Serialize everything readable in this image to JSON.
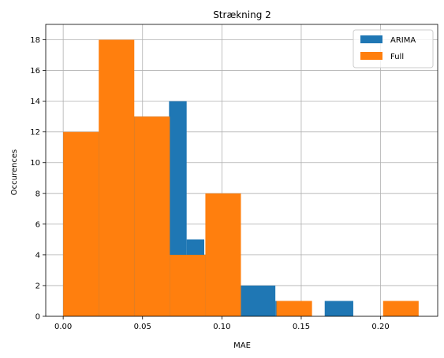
{
  "chart_data": {
    "type": "bar",
    "subtype": "histogram",
    "title": "Strækning 2",
    "xlabel": "MAE",
    "ylabel": "Occurences",
    "xlim": [
      -0.011,
      0.236
    ],
    "ylim": [
      0,
      19
    ],
    "x_ticks": [
      0.0,
      0.05,
      0.1,
      0.15,
      0.2
    ],
    "x_tick_labels": [
      "0.00",
      "0.05",
      "0.10",
      "0.15",
      "0.20"
    ],
    "y_ticks": [
      0,
      2,
      4,
      6,
      8,
      10,
      12,
      14,
      16,
      18
    ],
    "y_tick_labels": [
      "0",
      "2",
      "4",
      "6",
      "8",
      "10",
      "12",
      "14",
      "16",
      "18"
    ],
    "grid": true,
    "legend_position": "top-right",
    "series": [
      {
        "name": "ARIMA",
        "color": "#1f77b4",
        "bins": [
          {
            "start": 0.0,
            "end": 0.0167,
            "count": 12
          },
          {
            "start": 0.0167,
            "end": 0.0333,
            "count": 12
          },
          {
            "start": 0.0333,
            "end": 0.05,
            "count": 13
          },
          {
            "start": 0.05,
            "end": 0.0667,
            "count": 13
          },
          {
            "start": 0.0667,
            "end": 0.0778,
            "count": 14
          },
          {
            "start": 0.0778,
            "end": 0.0889,
            "count": 5
          },
          {
            "start": 0.0889,
            "end": 0.1115,
            "count": 4
          },
          {
            "start": 0.1115,
            "end": 0.1337,
            "count": 2
          },
          {
            "start": 0.1337,
            "end": 0.1505,
            "count": 1
          },
          {
            "start": 0.1505,
            "end": 0.1648,
            "count": 0
          },
          {
            "start": 0.1648,
            "end": 0.1828,
            "count": 1
          }
        ]
      },
      {
        "name": "Full",
        "color": "#ff7f0e",
        "bins": [
          {
            "start": 0.0,
            "end": 0.0224,
            "count": 12
          },
          {
            "start": 0.0224,
            "end": 0.0448,
            "count": 18
          },
          {
            "start": 0.0448,
            "end": 0.0672,
            "count": 13
          },
          {
            "start": 0.0672,
            "end": 0.0896,
            "count": 4
          },
          {
            "start": 0.0896,
            "end": 0.112,
            "count": 8
          },
          {
            "start": 0.112,
            "end": 0.1344,
            "count": 0
          },
          {
            "start": 0.1344,
            "end": 0.1568,
            "count": 1
          },
          {
            "start": 0.1568,
            "end": 0.1792,
            "count": 0
          },
          {
            "start": 0.1792,
            "end": 0.2016,
            "count": 0
          },
          {
            "start": 0.2016,
            "end": 0.224,
            "count": 1
          }
        ]
      }
    ]
  }
}
